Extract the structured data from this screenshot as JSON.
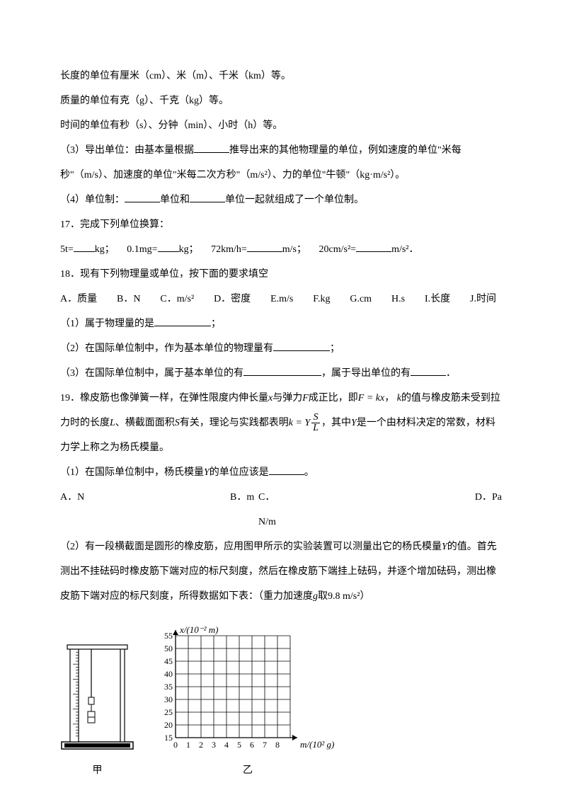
{
  "p1": "长度的单位有厘米（cm）、米（m）、千米（km）等。",
  "p2": "质量的单位有克（g）、千克（kg）等。",
  "p3": "时间的单位有秒（s）、分钟（min）、小时（h）等。",
  "p4a": "（3）导出单位：由基本量根据",
  "p4b": "推导出来的其他物理量的单位，例如速度的单位\"米每秒\"（m/s）、加速度的单位\"米每二次方秒\"（m/s²）、力的单位\"牛顿\"（kg·m/s²）。",
  "p5a": "（4）单位制：",
  "p5b": "单位和",
  "p5c": "单位一起就组成了一个单位制。",
  "q17": "17．完成下列单位换算：",
  "q17_1a": "5t=",
  "q17_1b": "kg；",
  "q17_2a": "0.1mg=",
  "q17_2b": "kg；",
  "q17_3a": "72km/h=",
  "q17_3b": "m/s；",
  "q17_4a": "20cm/s²=",
  "q17_4b": "m/s²．",
  "q18": "18．现有下列物理量或单位，按下面的要求填空",
  "opts": {
    "A": "A．质量",
    "B": "B．N",
    "C": "C．m/s²",
    "D": "D．密度",
    "E": "E.m/s",
    "F": "F.kg",
    "G": "G.cm",
    "H": "H.s",
    "I": "I.长度",
    "J": "J.时间"
  },
  "q18_1a": "（1）属于物理量的是",
  "q18_1b": "；",
  "q18_2a": "（2）在国际单位制中，作为基本单位的物理量有",
  "q18_2b": "；",
  "q18_3a": "（3）在国际单位制中，属于基本单位的有",
  "q18_3b": "，属于导出单位的有",
  "q18_3c": "．",
  "q19a": "19．橡皮筋也像弹簧一样，在弹性限度内伸长量",
  "q19b": "与弹力",
  "q19c": "成正比，即",
  "q19d": "的值与橡皮筋未受到拉力时的长度",
  "q19e": "、横截面面积",
  "q19f": "有关，理论与实践都表明",
  "q19g": "，其中",
  "q19h": "是一个由材料决定的常数，材料力学上称之为杨氏模量。",
  "var_x": "x",
  "var_F": "F",
  "var_k": "k",
  "var_L": "L",
  "var_S": "S",
  "var_Y": "Y",
  "eq1": "F = kx",
  "eq2_lhs": "k = Y",
  "q19_1a": "（1）在国际单位制中，杨氏模量",
  "q19_1b": "的单位应该是",
  "q19_1c": "。",
  "choices": {
    "A": "A．N",
    "B": "B．m",
    "C": "C．N/m",
    "D": "D．Pa"
  },
  "q19_2a": "（2）有一段横截面是圆形的橡皮筋，应用图甲所示的实验装置可以测量出它的杨氏模量",
  "q19_2b": "的值。首先测出不挂砝码时橡皮筋下端对应的标尺刻度，然后在橡皮筋下端挂上砝码，并逐个增加砝码，测出橡皮筋下端对应的标尺刻度，所得数据如下表：（重力加速度",
  "q19_2c": "取",
  "q19_2d": "）",
  "var_g": "g",
  "g_val": "9.8 m/s²",
  "apparatus_label": "甲",
  "chart_label": "乙",
  "chart": {
    "y_title": "x/(10⁻² m)",
    "x_title": "m/(10² g)",
    "y_ticks": [
      15,
      20,
      25,
      30,
      35,
      40,
      45,
      50,
      55
    ],
    "x_ticks": [
      0,
      1,
      2,
      3,
      4,
      5,
      6,
      7,
      8
    ],
    "grid_cols": 9,
    "grid_rows": 8,
    "grid_color": "#000000",
    "axis_color": "#000000",
    "background": "#ffffff",
    "cell": 18,
    "tick_font": 12
  },
  "apparatus": {
    "width": 105,
    "height": 155,
    "base_color": "#000000",
    "frame_color": "#000000"
  }
}
